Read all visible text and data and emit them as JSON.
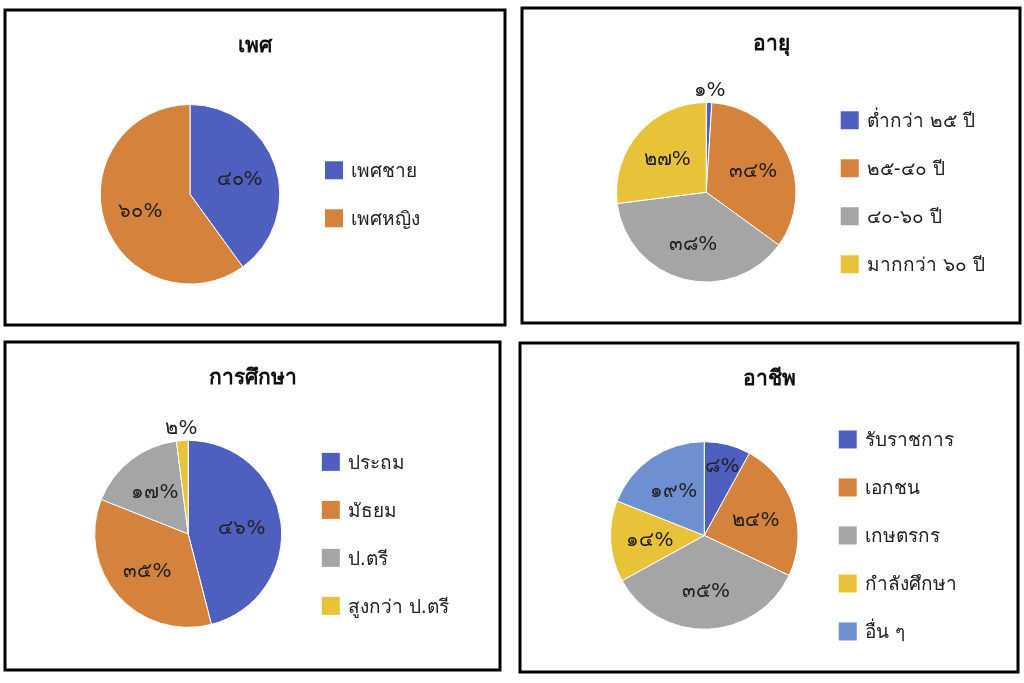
{
  "chart_data": [
    {
      "type": "pie",
      "title": "เพศ",
      "categories": [
        "เพศชาย",
        "เพศหญิง"
      ],
      "values": [
        40,
        60
      ],
      "colors": [
        "#4e5fc0",
        "#d4823c"
      ],
      "value_labels": [
        "๔๐%",
        "๖๐%"
      ],
      "legend": "right"
    },
    {
      "type": "pie",
      "title": "อายุ",
      "categories": [
        "ต่ำกว่า ๒๕ ปี",
        "๒๕-๔๐ ปี",
        "๔๐-๖๐ ปี",
        "มากกว่า ๖๐ ปี"
      ],
      "values": [
        1,
        34,
        38,
        27
      ],
      "colors": [
        "#4e5fc0",
        "#d4823c",
        "#a5a5a5",
        "#e8c33a"
      ],
      "value_labels": [
        "๑%",
        "๓๔%",
        "๓๘%",
        "๒๗%"
      ],
      "legend": "right"
    },
    {
      "type": "pie",
      "title": "การศึกษา",
      "categories": [
        "ประถม",
        "มัธยม",
        "ป.ตรี",
        "สูงกว่า ป.ตรี"
      ],
      "values": [
        46,
        35,
        17,
        2
      ],
      "colors": [
        "#4e5fc0",
        "#d4823c",
        "#a5a5a5",
        "#e8c33a"
      ],
      "value_labels": [
        "๔๖%",
        "๓๕%",
        "๑๗%",
        "๒%"
      ],
      "legend": "right"
    },
    {
      "type": "pie",
      "title": "อาชีพ",
      "categories": [
        "รับราชการ",
        "เอกชน",
        "เกษตรกร",
        "กำลังศึกษา",
        "อื่น ๆ"
      ],
      "values": [
        8,
        24,
        35,
        14,
        19
      ],
      "colors": [
        "#4e5fc0",
        "#d4823c",
        "#a5a5a5",
        "#e8c33a",
        "#6e8fd0"
      ],
      "value_labels": [
        "๘%",
        "๒๔%",
        "๓๕%",
        "๑๔%",
        "๑๙%"
      ],
      "legend": "right"
    }
  ]
}
